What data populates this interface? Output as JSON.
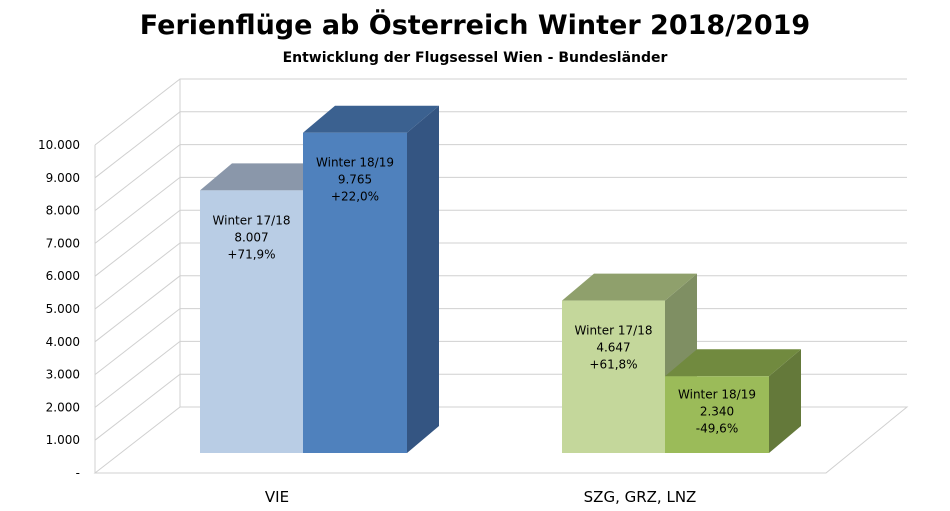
{
  "chart_data": {
    "type": "bar",
    "title": "Ferienflüge ab Österreich Winter 2018/2019",
    "subtitle": "Entwicklung der Flugsessel Wien - Bundesländer",
    "categories": [
      "VIE",
      "SZG, GRZ, LNZ"
    ],
    "ylim": [
      0,
      10000
    ],
    "yticks": [
      {
        "value": 0,
        "label": "-"
      },
      {
        "value": 1000,
        "label": "1.000"
      },
      {
        "value": 2000,
        "label": "2.000"
      },
      {
        "value": 3000,
        "label": "3.000"
      },
      {
        "value": 4000,
        "label": "4.000"
      },
      {
        "value": 5000,
        "label": "5.000"
      },
      {
        "value": 6000,
        "label": "6.000"
      },
      {
        "value": 7000,
        "label": "7.000"
      },
      {
        "value": 8000,
        "label": "8.000"
      },
      {
        "value": 9000,
        "label": "9.000"
      },
      {
        "value": 10000,
        "label": "10.000"
      }
    ],
    "grid": true,
    "legend": "none",
    "bars": [
      {
        "category": "VIE",
        "value": 8007,
        "label": [
          "Winter 17/18",
          "8.007",
          "+71,9%"
        ],
        "colors": {
          "front": "#b9cde5",
          "top": "#8a97aa",
          "side": "#8a9ab2"
        }
      },
      {
        "category": "VIE",
        "value": 9765,
        "label": [
          "Winter 18/19",
          "9.765",
          "+22,0%"
        ],
        "colors": {
          "front": "#4f81bd",
          "top": "#3b6190",
          "side": "#345582"
        }
      },
      {
        "category": "SZG, GRZ, LNZ",
        "value": 4647,
        "label": [
          "Winter 17/18",
          "4.647",
          "+61,8%"
        ],
        "colors": {
          "front": "#c4d79b",
          "top": "#8fa06c",
          "side": "#7f8f63"
        }
      },
      {
        "category": "SZG, GRZ, LNZ",
        "value": 2340,
        "label": [
          "Winter 18/19",
          "2.340",
          "-49,6%"
        ],
        "colors": {
          "front": "#9bbb59",
          "top": "#718a3f",
          "side": "#64793a"
        }
      }
    ]
  }
}
